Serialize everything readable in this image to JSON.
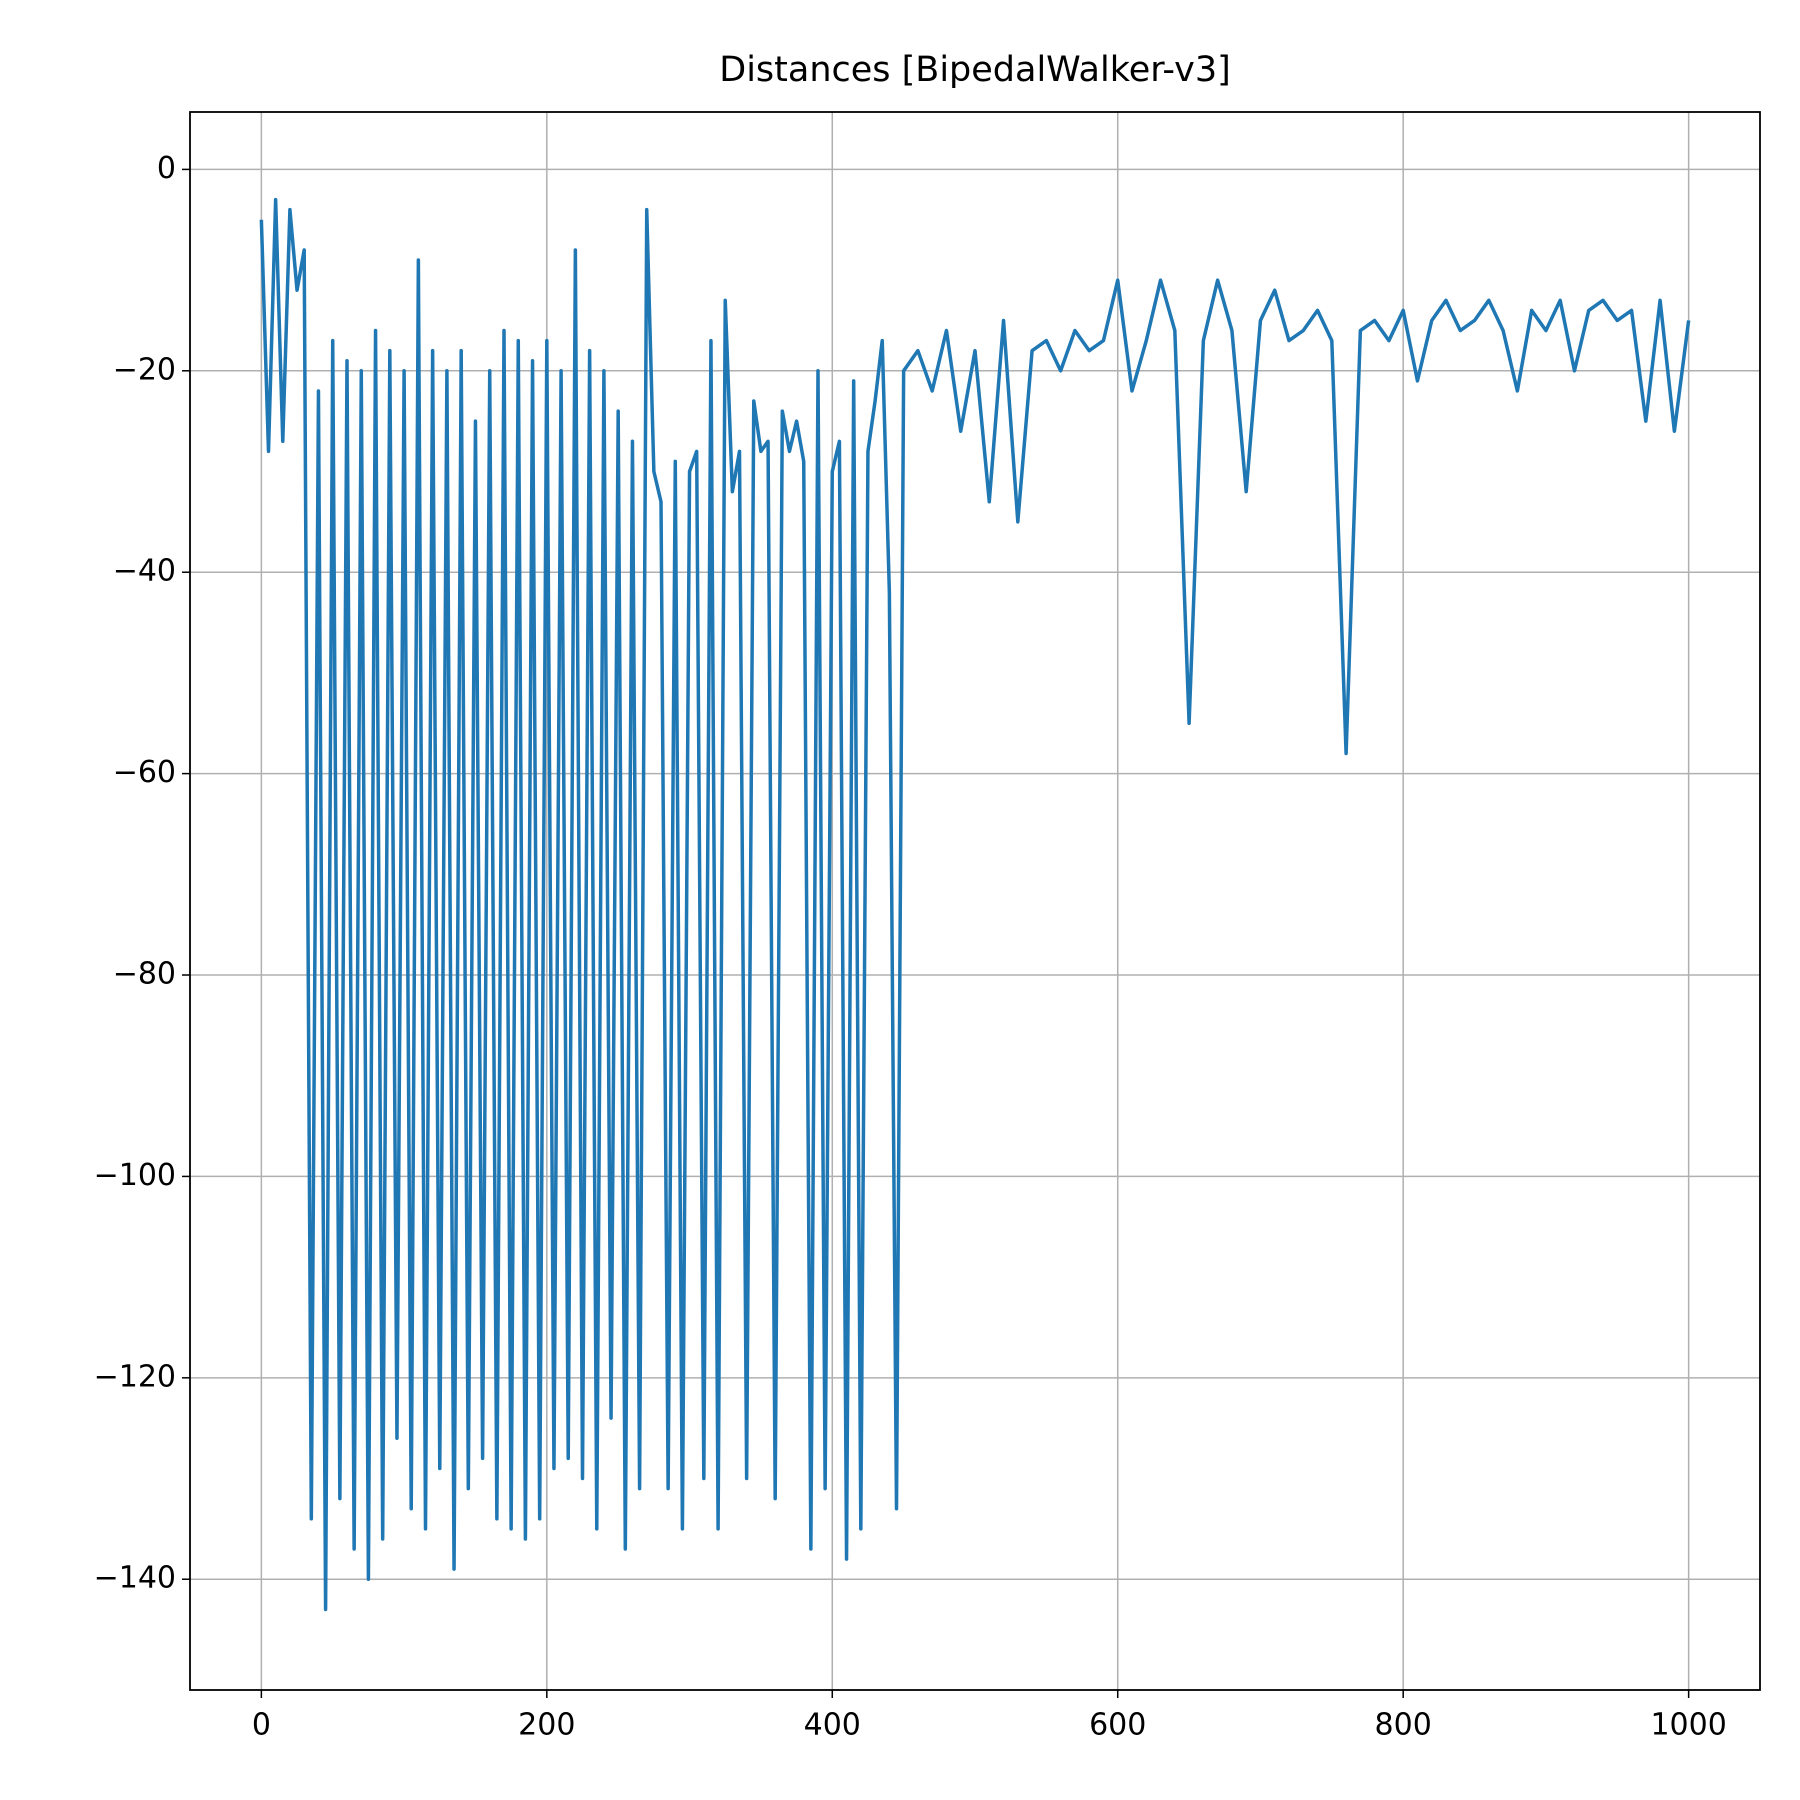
{
  "chart_data": {
    "type": "line",
    "title": "Distances [BipedalWalker-v3]",
    "x": [
      0,
      5,
      10,
      15,
      20,
      25,
      30,
      35,
      40,
      45,
      50,
      55,
      60,
      65,
      70,
      75,
      80,
      85,
      90,
      95,
      100,
      105,
      110,
      115,
      120,
      125,
      130,
      135,
      140,
      145,
      150,
      155,
      160,
      165,
      170,
      175,
      180,
      185,
      190,
      195,
      200,
      205,
      210,
      215,
      220,
      225,
      230,
      235,
      240,
      245,
      250,
      255,
      260,
      265,
      270,
      275,
      280,
      285,
      290,
      295,
      300,
      305,
      310,
      315,
      320,
      325,
      330,
      335,
      340,
      345,
      350,
      355,
      360,
      365,
      370,
      375,
      380,
      385,
      390,
      395,
      400,
      405,
      410,
      415,
      420,
      425,
      430,
      435,
      440,
      445,
      450,
      460,
      470,
      480,
      490,
      500,
      510,
      520,
      530,
      540,
      550,
      560,
      570,
      580,
      590,
      600,
      610,
      620,
      630,
      640,
      650,
      660,
      670,
      680,
      690,
      700,
      710,
      720,
      730,
      740,
      750,
      760,
      770,
      780,
      790,
      800,
      810,
      820,
      830,
      840,
      850,
      860,
      870,
      880,
      890,
      900,
      910,
      920,
      930,
      940,
      950,
      960,
      970,
      980,
      990,
      1000
    ],
    "series": [
      {
        "name": "Distances",
        "color": "#1f77b4",
        "values": [
          -5,
          -28,
          -3,
          -27,
          -4,
          -12,
          -8,
          -134,
          -22,
          -143,
          -17,
          -132,
          -19,
          -137,
          -20,
          -140,
          -16,
          -136,
          -18,
          -126,
          -20,
          -133,
          -9,
          -135,
          -18,
          -129,
          -20,
          -139,
          -18,
          -131,
          -25,
          -128,
          -20,
          -134,
          -16,
          -135,
          -17,
          -136,
          -19,
          -134,
          -17,
          -129,
          -20,
          -128,
          -8,
          -130,
          -18,
          -135,
          -20,
          -124,
          -24,
          -137,
          -27,
          -131,
          -4,
          -30,
          -33,
          -131,
          -29,
          -135,
          -30,
          -28,
          -130,
          -17,
          -135,
          -13,
          -32,
          -28,
          -130,
          -23,
          -28,
          -27,
          -132,
          -24,
          -28,
          -25,
          -29,
          -137,
          -20,
          -131,
          -30,
          -27,
          -138,
          -21,
          -135,
          -28,
          -23,
          -17,
          -42,
          -133,
          -20,
          -18,
          -22,
          -16,
          -26,
          -18,
          -33,
          -15,
          -35,
          -18,
          -17,
          -20,
          -16,
          -18,
          -17,
          -11,
          -22,
          -17,
          -11,
          -16,
          -55,
          -17,
          -11,
          -16,
          -32,
          -15,
          -12,
          -17,
          -16,
          -14,
          -17,
          -58,
          -16,
          -15,
          -17,
          -14,
          -21,
          -15,
          -13,
          -16,
          -15,
          -13,
          -16,
          -22,
          -14,
          -16,
          -13,
          -20,
          -14,
          -13,
          -15,
          -14,
          -25,
          -13,
          -26,
          -15
        ]
      }
    ],
    "xlim": [
      -50,
      1050
    ],
    "ylim": [
      -151,
      5.7
    ],
    "xticks": [
      0,
      200,
      400,
      600,
      800,
      1000
    ],
    "yticks": [
      {
        "value": -140,
        "label": "−140"
      },
      {
        "value": -120,
        "label": "−120"
      },
      {
        "value": -100,
        "label": "−100"
      },
      {
        "value": -80,
        "label": "−80"
      },
      {
        "value": -60,
        "label": "−60"
      },
      {
        "value": -40,
        "label": "−40"
      },
      {
        "value": -20,
        "label": "−20"
      },
      0
    ],
    "grid": true
  }
}
